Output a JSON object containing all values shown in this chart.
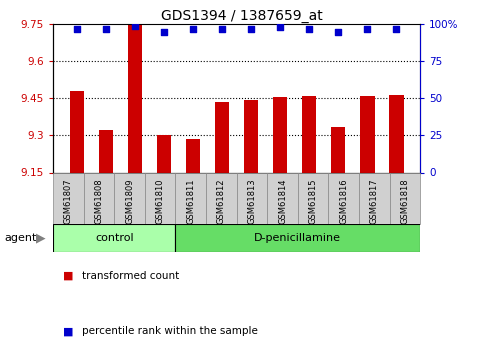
{
  "title": "GDS1394 / 1387659_at",
  "samples": [
    "GSM61807",
    "GSM61808",
    "GSM61809",
    "GSM61810",
    "GSM61811",
    "GSM61812",
    "GSM61813",
    "GSM61814",
    "GSM61815",
    "GSM61816",
    "GSM61817",
    "GSM61818"
  ],
  "bar_values": [
    9.48,
    9.32,
    9.75,
    9.3,
    9.285,
    9.435,
    9.445,
    9.455,
    9.46,
    9.335,
    9.46,
    9.465
  ],
  "percentile_values": [
    97,
    97,
    99,
    95,
    97,
    97,
    97,
    98,
    97,
    95,
    97,
    97
  ],
  "ylim_left": [
    9.15,
    9.75
  ],
  "ylim_right": [
    0,
    100
  ],
  "yticks_left": [
    9.15,
    9.3,
    9.45,
    9.6,
    9.75
  ],
  "yticks_right": [
    0,
    25,
    50,
    75,
    100
  ],
  "ytick_labels_left": [
    "9.15",
    "9.3",
    "9.45",
    "9.6",
    "9.75"
  ],
  "ytick_labels_right": [
    "0",
    "25",
    "50",
    "75",
    "100%"
  ],
  "grid_lines": [
    9.3,
    9.45,
    9.6
  ],
  "bar_color": "#cc0000",
  "percentile_color": "#0000cc",
  "n_control": 4,
  "n_treatment": 8,
  "control_label": "control",
  "treatment_label": "D-penicillamine",
  "agent_label": "agent",
  "legend_bar_label": "transformed count",
  "legend_dot_label": "percentile rank within the sample",
  "bar_width": 0.5,
  "plot_bg_color": "#ffffff",
  "sample_box_color": "#d0d0d0",
  "control_bg": "#aaffaa",
  "treatment_bg": "#66dd66",
  "group_border_color": "#000000"
}
